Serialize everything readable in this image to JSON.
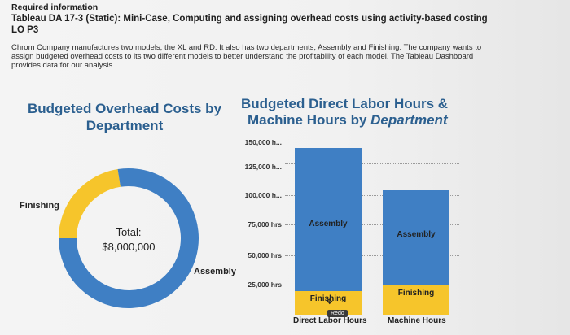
{
  "header": {
    "required": "Required information",
    "title": "Tableau DA 17-3 (Static): Mini-Case, Computing and assigning overhead costs using activity-based costing LO P3",
    "description": "Chrom Company manufactures two models, the XL and RD. It also has two departments, Assembly and Finishing. The company wants to assign budgeted overhead costs to its two different models to better understand the profitability of each model. The Tableau Dashboard provides data for our analysis."
  },
  "left_chart": {
    "title": "Budgeted Overhead Costs by Department",
    "center_label": "Total:",
    "center_value": "$8,000,000",
    "slice_labels": [
      "Finishing",
      "Assembly"
    ]
  },
  "right_chart": {
    "title_line1": "Budgeted Direct Labor Hours &",
    "title_line2_prefix": "Machine Hours by ",
    "title_line2_em": "Department",
    "y_ticks": [
      "150,000 h...",
      "125,000 h...",
      "100,000 h...",
      "75,000 hrs",
      "50,000 hrs",
      "25,000 hrs"
    ],
    "x_labels": [
      "Direct Labor Hours",
      "Machine Hours"
    ],
    "segment_labels": [
      "Assembly",
      "Finishing",
      "Assembly",
      "Finishing"
    ]
  },
  "tooltip": {
    "redo": "Redo"
  },
  "colors": {
    "assembly": "#3f7fc4",
    "finishing": "#f6c52b",
    "title_blue": "#2b5f8f"
  },
  "chart_data": [
    {
      "type": "pie",
      "title": "Budgeted Overhead Costs by Department",
      "categories": [
        "Finishing",
        "Assembly"
      ],
      "values": [
        1800000,
        6200000
      ],
      "total": 8000000
    },
    {
      "type": "bar",
      "stacked": true,
      "title": "Budgeted Direct Labor Hours & Machine Hours by Department",
      "categories": [
        "Direct Labor Hours",
        "Machine Hours"
      ],
      "series": [
        {
          "name": "Finishing",
          "values": [
            20000,
            25000
          ]
        },
        {
          "name": "Assembly",
          "values": [
            120000,
            80000
          ]
        }
      ],
      "ylim": [
        0,
        160000
      ]
    }
  ]
}
